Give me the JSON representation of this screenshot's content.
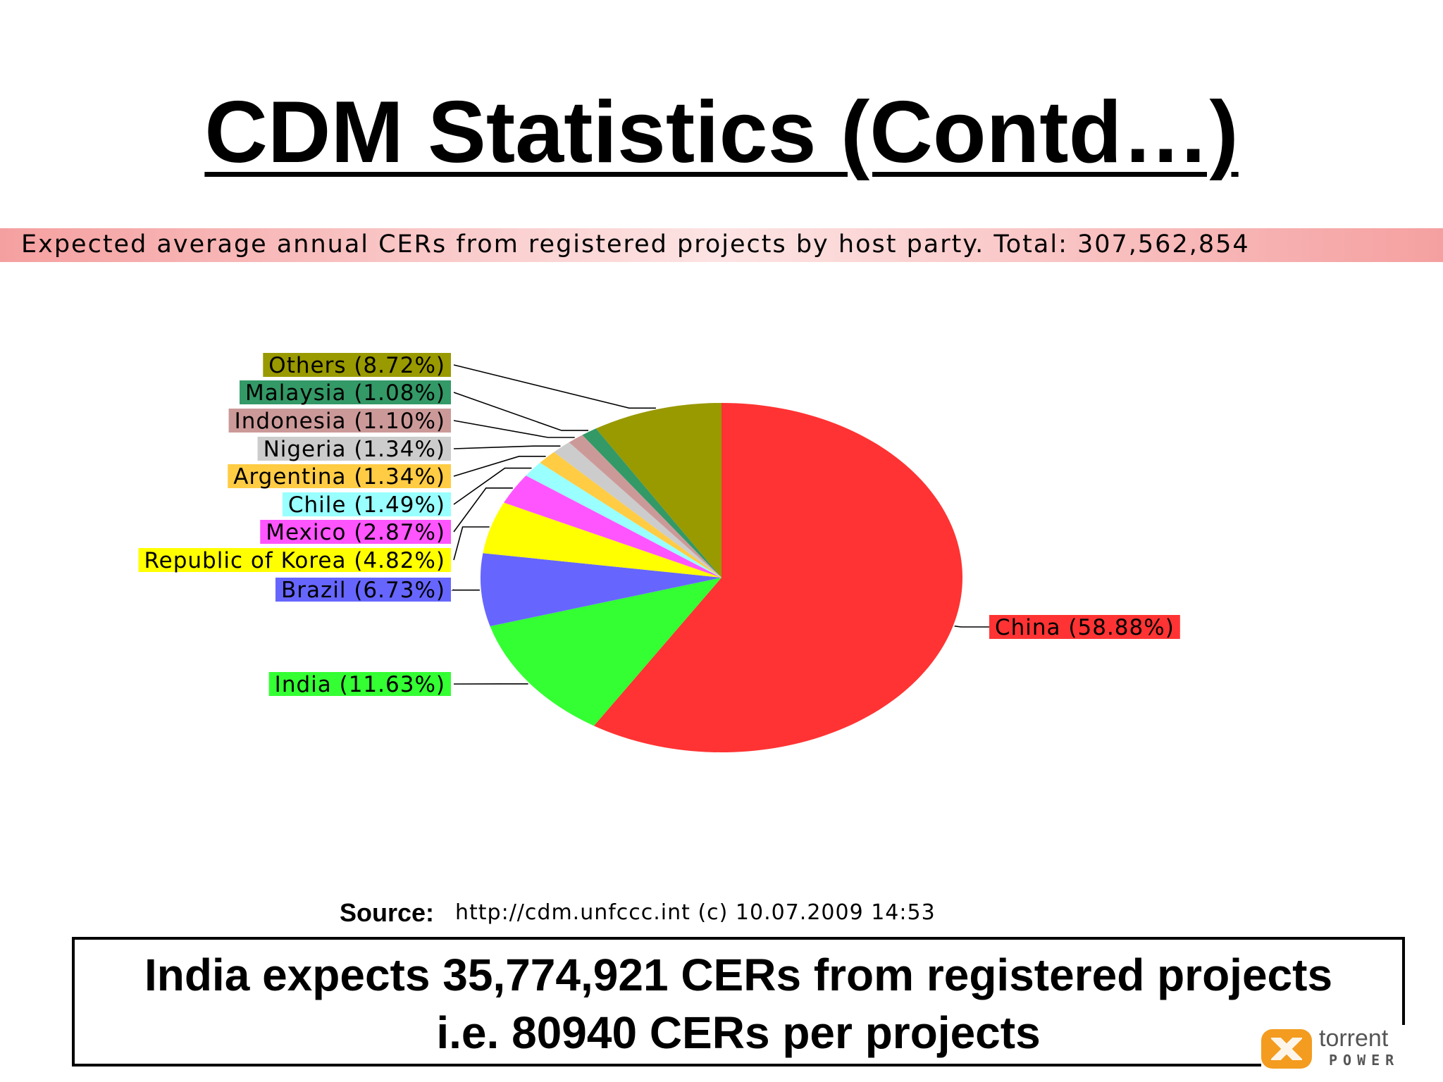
{
  "slide": {
    "title": "CDM Statistics (Contd…)",
    "source_label": "Source:",
    "source_text": "http://cdm.unfccc.int (c) 10.07.2009 14:53",
    "callout_line1": "India expects 35,774,921  CERs from registered projects",
    "callout_line2": "i.e. 80940 CERs per projects",
    "logo_name": "torrent",
    "logo_sub": "POWER"
  },
  "chart_data": {
    "type": "pie",
    "title": "Expected average annual CERs from registered projects by host party. Total: 307,562,854",
    "total": 307562854,
    "start_angle_deg": 0,
    "direction": "clockwise",
    "slices": [
      {
        "name": "China",
        "label": "China (58.88%)",
        "value": 58.88,
        "color": "#ff3333"
      },
      {
        "name": "India",
        "label": "India (11.63%)",
        "value": 11.63,
        "color": "#33ff33"
      },
      {
        "name": "Brazil",
        "label": "Brazil (6.73%)",
        "value": 6.73,
        "color": "#6666ff"
      },
      {
        "name": "Republic of Korea",
        "label": "Republic of Korea (4.82%)",
        "value": 4.82,
        "color": "#ffff00"
      },
      {
        "name": "Mexico",
        "label": "Mexico (2.87%)",
        "value": 2.87,
        "color": "#ff55ff"
      },
      {
        "name": "Chile",
        "label": "Chile (1.49%)",
        "value": 1.49,
        "color": "#99ffff"
      },
      {
        "name": "Argentina",
        "label": "Argentina (1.34%)",
        "value": 1.34,
        "color": "#ffcc44"
      },
      {
        "name": "Nigeria",
        "label": "Nigeria (1.34%)",
        "value": 1.34,
        "color": "#cccccc"
      },
      {
        "name": "Indonesia",
        "label": "Indonesia (1.10%)",
        "value": 1.1,
        "color": "#cc9999"
      },
      {
        "name": "Malaysia",
        "label": "Malaysia (1.08%)",
        "value": 1.08,
        "color": "#339966"
      },
      {
        "name": "Others",
        "label": "Others (8.72%)",
        "value": 8.72,
        "color": "#999900"
      }
    ]
  }
}
